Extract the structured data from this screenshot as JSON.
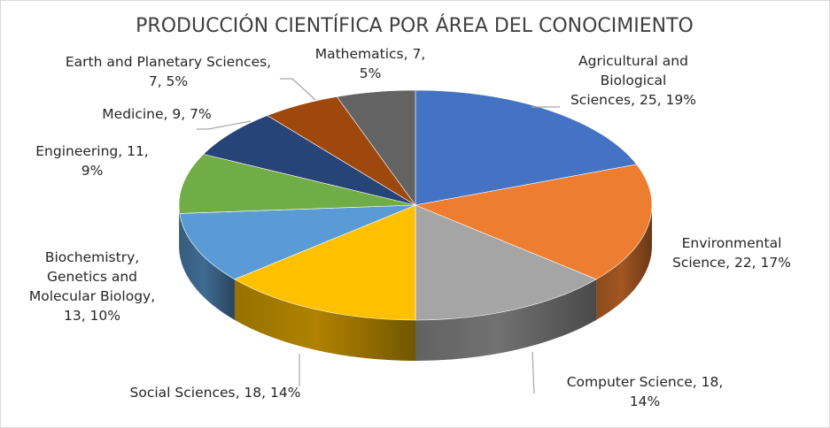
{
  "chart_data": {
    "type": "pie",
    "title": "PRODUCCIÓN CIENTÍFICA POR ÁREA DEL CONOCIMIENTO",
    "slices": [
      {
        "label": "Agricultural and Biological Sciences",
        "value": 25,
        "percent": "19%",
        "color": "#4472C4",
        "display": [
          "Agricultural and",
          "Biological",
          "Sciences, 25, 19%"
        ]
      },
      {
        "label": "Environmental Science",
        "value": 22,
        "percent": "17%",
        "color": "#ED7D31",
        "display": [
          "Environmental",
          "Science, 22, 17%"
        ]
      },
      {
        "label": "Computer Science",
        "value": 18,
        "percent": "14%",
        "color": "#A5A5A5",
        "display": [
          "Computer Science, 18,",
          "14%"
        ]
      },
      {
        "label": "Social Sciences",
        "value": 18,
        "percent": "14%",
        "color": "#FFC000",
        "display": [
          "Social Sciences, 18, 14%"
        ]
      },
      {
        "label": "Biochemistry, Genetics and Molecular Biology",
        "value": 13,
        "percent": "10%",
        "color": "#5B9BD5",
        "display": [
          "Biochemistry,",
          "Genetics and",
          "Molecular Biology,",
          "13, 10%"
        ]
      },
      {
        "label": "Engineering",
        "value": 11,
        "percent": "9%",
        "color": "#70AD47",
        "display": [
          "Engineering, 11,",
          "9%"
        ]
      },
      {
        "label": "Medicine",
        "value": 9,
        "percent": "7%",
        "color": "#264478",
        "display": [
          "Medicine, 9, 7%"
        ]
      },
      {
        "label": "Earth and Planetary Sciences",
        "value": 7,
        "percent": "5%",
        "color": "#9E480E",
        "display": [
          "Earth and Planetary Sciences,",
          "7, 5%"
        ]
      },
      {
        "label": "Mathematics",
        "value": 7,
        "percent": "5%",
        "color": "#636363",
        "display": [
          "Mathematics, 7,",
          "5%"
        ]
      }
    ],
    "legend": "none",
    "style": "3d-pie"
  }
}
